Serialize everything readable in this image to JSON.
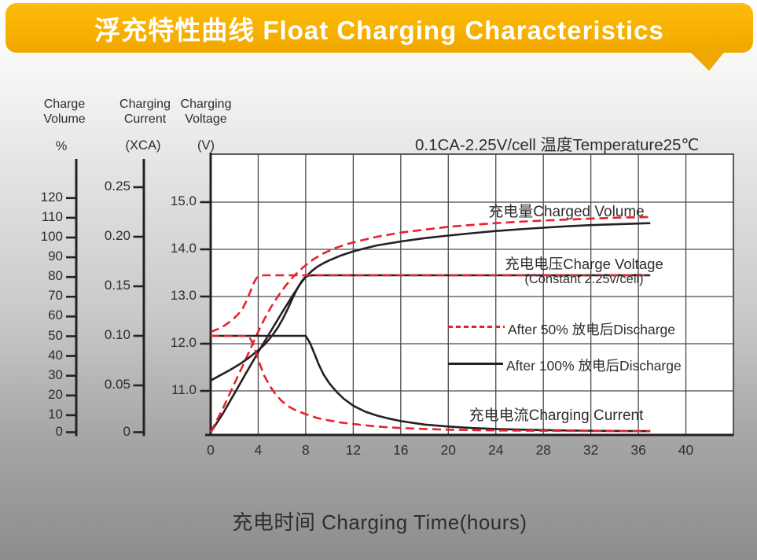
{
  "banner": {
    "title": "浮充特性曲线 Float Charging Characteristics"
  },
  "condition": "0.1CA-2.25V/cell   温度Temperature25℃",
  "colors": {
    "banner": "#f5ae00",
    "red": "#e8212b",
    "black": "#252122",
    "grid": "#4a4a4b",
    "plot_bg": "#ffffff",
    "text": "#312d2e"
  },
  "axes": {
    "volume": {
      "header": "Charge\nVolume",
      "unit": "%",
      "ticks": [
        "120",
        "110",
        "100",
        "90",
        "80",
        "70",
        "60",
        "50",
        "40",
        "30",
        "20",
        "10",
        "0"
      ]
    },
    "current": {
      "header": "Charging\nCurrent",
      "unit": "(XCA)",
      "ticks": [
        "0.25",
        "0.20",
        "0.15",
        "0.10",
        "0.05",
        "0"
      ]
    },
    "voltage": {
      "header": "Charging\nVoltage",
      "unit": "(V)",
      "ticks": [
        "15.0",
        "14.0",
        "13.0",
        "12.0",
        "11.0"
      ]
    },
    "time": {
      "title": "充电时间 Charging Time(hours)",
      "ticks": [
        "0",
        "4",
        "8",
        "12",
        "16",
        "20",
        "24",
        "28",
        "32",
        "36",
        "40"
      ]
    }
  },
  "chart_labels": {
    "charged_volume": "充电量Charged Volume",
    "charge_voltage": "充电电压Charge Voltage",
    "charge_voltage_sub": "(Constant 2.25v/cell)",
    "charging_current": "充电电流Charging Current"
  },
  "legend": {
    "items": [
      {
        "swatch": "red-dashed",
        "label": "After 50% 放电后Discharge"
      },
      {
        "swatch": "black-solid",
        "label": "After 100% 放电后Discharge"
      }
    ]
  },
  "chart_data": {
    "type": "line",
    "title": "浮充特性曲线 Float Charging Characteristics",
    "condition": "0.1CA-2.25V/cell 温度Temperature25℃",
    "xlabel": "充电时间 Charging Time(hours)",
    "x_ticks": [
      0,
      4,
      8,
      12,
      16,
      20,
      24,
      28,
      32,
      36,
      40
    ],
    "x_range": [
      0,
      44
    ],
    "grid": true,
    "y_axes": {
      "volume_pct": {
        "label": "Charge Volume %",
        "ticks": [
          0,
          10,
          20,
          30,
          40,
          50,
          60,
          70,
          80,
          90,
          100,
          110,
          120
        ]
      },
      "current_xca": {
        "label": "Charging Current (XCA)",
        "ticks": [
          0,
          0.05,
          0.1,
          0.15,
          0.2,
          0.25
        ]
      },
      "voltage_v": {
        "label": "Charging Voltage (V)",
        "ticks": [
          11.0,
          12.0,
          13.0,
          14.0,
          15.0
        ]
      }
    },
    "series": [
      {
        "id": "volume-after-100",
        "name": "充电量Charged Volume (After 100% discharge)",
        "scale": "pct",
        "stroke": "black",
        "dash": false,
        "points": [
          [
            0,
            0
          ],
          [
            1,
            10.5
          ],
          [
            2,
            21
          ],
          [
            3,
            31.5
          ],
          [
            4,
            42
          ],
          [
            5,
            52
          ],
          [
            6,
            62
          ],
          [
            7,
            71.5
          ],
          [
            7.6,
            77
          ],
          [
            8,
            80
          ],
          [
            8.5,
            83
          ],
          [
            9,
            85.3
          ],
          [
            9.5,
            87
          ],
          [
            10,
            88.5
          ],
          [
            11,
            91
          ],
          [
            12,
            93
          ],
          [
            13,
            94.6
          ],
          [
            14,
            96
          ],
          [
            16,
            98
          ],
          [
            18,
            99.7
          ],
          [
            20,
            101
          ],
          [
            22,
            102.2
          ],
          [
            24,
            103.3
          ],
          [
            26,
            104.2
          ],
          [
            28,
            105
          ],
          [
            30,
            105.7
          ],
          [
            32,
            106.3
          ],
          [
            34.5,
            106.8
          ],
          [
            37,
            107.3
          ]
        ]
      },
      {
        "id": "volume-after-50",
        "name": "充电量Charged Volume (After 50% discharge)",
        "scale": "pct",
        "stroke": "red",
        "dash": true,
        "points": [
          [
            0,
            0
          ],
          [
            1,
            13
          ],
          [
            2,
            26
          ],
          [
            2.7,
            35
          ],
          [
            3.3,
            43
          ],
          [
            3.9,
            51
          ],
          [
            4.5,
            58.5
          ],
          [
            5.1,
            65
          ],
          [
            5.7,
            70.5
          ],
          [
            6.3,
            75.5
          ],
          [
            7,
            80.5
          ],
          [
            7.8,
            85
          ],
          [
            8.6,
            88.8
          ],
          [
            9.5,
            92
          ],
          [
            10.5,
            94.7
          ],
          [
            11.5,
            96.7
          ],
          [
            12.5,
            98.3
          ],
          [
            14,
            100.4
          ],
          [
            16,
            102.5
          ],
          [
            18,
            104
          ],
          [
            20,
            105.4
          ],
          [
            22,
            106.4
          ],
          [
            24,
            107.3
          ],
          [
            26,
            108
          ],
          [
            28,
            108.6
          ],
          [
            30,
            109.1
          ],
          [
            32,
            109.6
          ],
          [
            34.5,
            110.1
          ],
          [
            37,
            110.4
          ]
        ]
      },
      {
        "id": "voltage-after-100",
        "name": "充电电压Charge Voltage (After 100% discharge)",
        "scale": "V",
        "stroke": "black",
        "dash": false,
        "points": [
          [
            0,
            11.22
          ],
          [
            0.8,
            11.33
          ],
          [
            1.6,
            11.44
          ],
          [
            2.4,
            11.56
          ],
          [
            3.2,
            11.7
          ],
          [
            4,
            11.86
          ],
          [
            4.6,
            12.0
          ],
          [
            5.2,
            12.18
          ],
          [
            5.7,
            12.36
          ],
          [
            6.1,
            12.54
          ],
          [
            6.5,
            12.74
          ],
          [
            6.9,
            12.97
          ],
          [
            7.3,
            13.17
          ],
          [
            7.6,
            13.3
          ],
          [
            7.9,
            13.4
          ],
          [
            8.2,
            13.44
          ],
          [
            8.6,
            13.45
          ],
          [
            37,
            13.45
          ]
        ]
      },
      {
        "id": "voltage-after-50",
        "name": "充电电压Charge Voltage (After 50% discharge)",
        "scale": "V",
        "stroke": "red",
        "dash": true,
        "points": [
          [
            0,
            12.25
          ],
          [
            0.6,
            12.31
          ],
          [
            1.2,
            12.39
          ],
          [
            1.8,
            12.5
          ],
          [
            2.3,
            12.62
          ],
          [
            2.7,
            12.75
          ],
          [
            3.0,
            12.9
          ],
          [
            3.3,
            13.08
          ],
          [
            3.6,
            13.27
          ],
          [
            3.85,
            13.39
          ],
          [
            4.1,
            13.44
          ],
          [
            4.5,
            13.45
          ],
          [
            37,
            13.45
          ]
        ]
      },
      {
        "id": "current-after-100",
        "name": "充电电流Charging Current (After 100% discharge)",
        "scale": "CA",
        "stroke": "black",
        "dash": false,
        "points": [
          [
            0,
            0.1
          ],
          [
            8,
            0.1
          ],
          [
            8.35,
            0.093
          ],
          [
            8.7,
            0.083
          ],
          [
            9.1,
            0.071
          ],
          [
            9.5,
            0.061
          ],
          [
            10,
            0.052
          ],
          [
            10.6,
            0.0435
          ],
          [
            11.2,
            0.0365
          ],
          [
            12,
            0.0295
          ],
          [
            13,
            0.0235
          ],
          [
            14,
            0.0195
          ],
          [
            15,
            0.0165
          ],
          [
            16,
            0.014
          ],
          [
            18,
            0.0105
          ],
          [
            20,
            0.0085
          ],
          [
            22,
            0.007
          ],
          [
            24,
            0.006
          ],
          [
            27,
            0.0051
          ],
          [
            30,
            0.0045
          ],
          [
            33,
            0.0041
          ],
          [
            37,
            0.0038
          ]
        ]
      },
      {
        "id": "current-after-50",
        "name": "充电电流Charging Current (After 50% discharge)",
        "scale": "CA",
        "stroke": "red",
        "dash": true,
        "points": [
          [
            0,
            0.1
          ],
          [
            3.2,
            0.1
          ],
          [
            3.5,
            0.0935
          ],
          [
            3.8,
            0.084
          ],
          [
            4.1,
            0.0725
          ],
          [
            4.5,
            0.06
          ],
          [
            5,
            0.049
          ],
          [
            5.5,
            0.0405
          ],
          [
            6,
            0.034
          ],
          [
            6.6,
            0.0285
          ],
          [
            7.2,
            0.0245
          ],
          [
            8,
            0.021
          ],
          [
            9,
            0.017
          ],
          [
            10,
            0.0145
          ],
          [
            11,
            0.0125
          ],
          [
            12,
            0.011
          ],
          [
            14,
            0.0085
          ],
          [
            16,
            0.007
          ],
          [
            18,
            0.006
          ],
          [
            20,
            0.0053
          ],
          [
            23,
            0.0047
          ],
          [
            26,
            0.0044
          ],
          [
            30,
            0.0041
          ],
          [
            33,
            0.004
          ],
          [
            37,
            0.004
          ]
        ]
      }
    ]
  }
}
